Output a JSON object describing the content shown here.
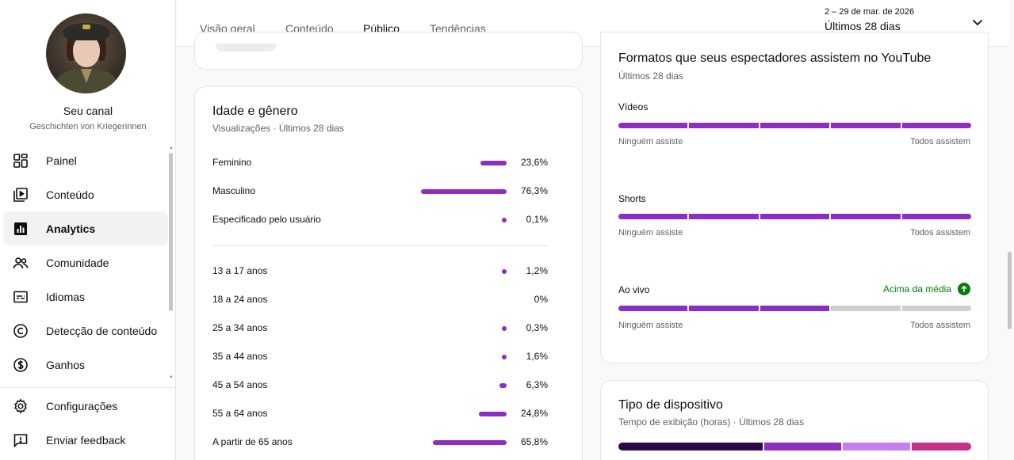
{
  "channel": {
    "title": "Seu canal",
    "subtitle": "Geschichten von Kriegerinnen"
  },
  "nav": {
    "items": [
      {
        "label": "Painel",
        "icon": "dashboard-icon"
      },
      {
        "label": "Conteúdo",
        "icon": "content-icon"
      },
      {
        "label": "Analytics",
        "icon": "analytics-icon",
        "active": true
      },
      {
        "label": "Comunidade",
        "icon": "community-icon"
      },
      {
        "label": "Idiomas",
        "icon": "subtitles-icon"
      },
      {
        "label": "Detecção de conteúdo",
        "icon": "copyright-icon"
      },
      {
        "label": "Ganhos",
        "icon": "dollar-icon"
      }
    ],
    "bottom": [
      {
        "label": "Configurações",
        "icon": "gear-icon"
      },
      {
        "label": "Enviar feedback",
        "icon": "feedback-icon"
      }
    ]
  },
  "header": {
    "tabs": [
      "Visão geral",
      "Conteúdo",
      "Público",
      "Tendências"
    ],
    "active_tab": "Público",
    "date_range": "2 – 29 de mar. de 2026",
    "date_label": "Últimos 28 dias"
  },
  "age_gender": {
    "title": "Idade e gênero",
    "subtitle": "Visualizações · Últimos 28 dias",
    "gender": [
      {
        "label": "Feminino",
        "pct": "23,6%",
        "value": 23.6
      },
      {
        "label": "Masculino",
        "pct": "76,3%",
        "value": 76.3
      },
      {
        "label": "Especificado pelo usuário",
        "pct": "0,1%",
        "value": 0.1
      }
    ],
    "age": [
      {
        "label": "13 a 17 anos",
        "pct": "1,2%",
        "value": 1.2
      },
      {
        "label": "18 a 24 anos",
        "pct": "0%",
        "value": 0
      },
      {
        "label": "25 a 34 anos",
        "pct": "0,3%",
        "value": 0.3
      },
      {
        "label": "35 a 44 anos",
        "pct": "1,6%",
        "value": 1.6
      },
      {
        "label": "45 a 54 anos",
        "pct": "6,3%",
        "value": 6.3
      },
      {
        "label": "55 a 64 anos",
        "pct": "24,8%",
        "value": 24.8
      },
      {
        "label": "A partir de 65 anos",
        "pct": "65,8%",
        "value": 65.8
      }
    ]
  },
  "formats": {
    "title": "Formatos que seus espectadores assistem no YouTube",
    "subtitle": "Últimos 28 dias",
    "min_label": "Ninguém assiste",
    "max_label": "Todos assistem",
    "items": [
      {
        "label": "Vídeos",
        "level": 5,
        "of": 5
      },
      {
        "label": "Shorts",
        "level": 5,
        "of": 5
      },
      {
        "label": "Ao vivo",
        "level": 3,
        "of": 5,
        "badge": "Acima da média"
      }
    ]
  },
  "device": {
    "title": "Tipo de dispositivo",
    "subtitle": "Tempo de exibição (horas) · Últimos 28 dias",
    "segments": [
      {
        "color": "#2d0a45",
        "share": 0.415
      },
      {
        "color": "#8c2ec2",
        "share": 0.22
      },
      {
        "color": "#c77ff0",
        "share": 0.195
      },
      {
        "color": "#c52e8a",
        "share": 0.17
      }
    ]
  },
  "colors": {
    "accent": "#8c2ec2",
    "positive": "#0b7a0b"
  }
}
